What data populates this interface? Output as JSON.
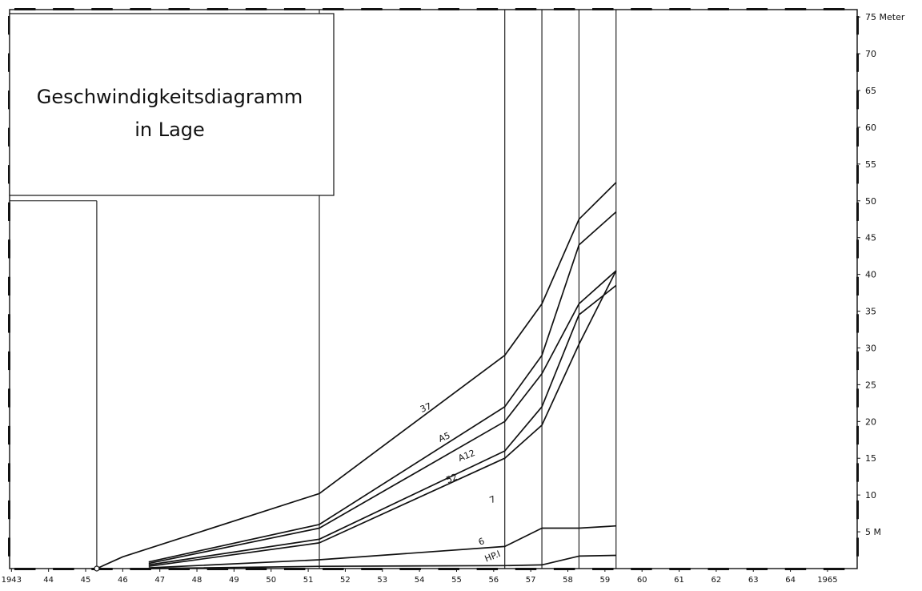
{
  "chart_data": {
    "type": "line",
    "title_lines": [
      "Geschwindigkeitsdiagramm",
      "in Lage"
    ],
    "xlabel": "",
    "ylabel": "",
    "x_ticks": [
      {
        "x": 1943,
        "label": "1943"
      },
      {
        "x": 1944,
        "label": "44"
      },
      {
        "x": 1945,
        "label": "45"
      },
      {
        "x": 1946,
        "label": "46"
      },
      {
        "x": 1947,
        "label": "47"
      },
      {
        "x": 1948,
        "label": "48"
      },
      {
        "x": 1949,
        "label": "49"
      },
      {
        "x": 1950,
        "label": "50"
      },
      {
        "x": 1951,
        "label": "51"
      },
      {
        "x": 1952,
        "label": "52"
      },
      {
        "x": 1953,
        "label": "53"
      },
      {
        "x": 1954,
        "label": "54"
      },
      {
        "x": 1955,
        "label": "55"
      },
      {
        "x": 1956,
        "label": "56"
      },
      {
        "x": 1957,
        "label": "57"
      },
      {
        "x": 1958,
        "label": "58"
      },
      {
        "x": 1959,
        "label": "59"
      },
      {
        "x": 1960,
        "label": "60"
      },
      {
        "x": 1961,
        "label": "61"
      },
      {
        "x": 1962,
        "label": "62"
      },
      {
        "x": 1963,
        "label": "63"
      },
      {
        "x": 1964,
        "label": "64"
      },
      {
        "x": 1965,
        "label": "1965"
      }
    ],
    "y_ticks": [
      {
        "y": 5,
        "label": "5 M"
      },
      {
        "y": 10,
        "label": "10"
      },
      {
        "y": 15,
        "label": "15"
      },
      {
        "y": 20,
        "label": "20"
      },
      {
        "y": 25,
        "label": "25"
      },
      {
        "y": 30,
        "label": "30"
      },
      {
        "y": 35,
        "label": "35"
      },
      {
        "y": 40,
        "label": "40"
      },
      {
        "y": 45,
        "label": "45"
      },
      {
        "y": 50,
        "label": "50"
      },
      {
        "y": 55,
        "label": "55"
      },
      {
        "y": 60,
        "label": "60"
      },
      {
        "y": 65,
        "label": "65"
      },
      {
        "y": 70,
        "label": "70"
      },
      {
        "y": 75,
        "label": "75 Meter"
      }
    ],
    "xlim": [
      1942.95,
      1965.8
    ],
    "ylim": [
      0,
      76
    ],
    "vertical_lines": [
      1945.3,
      1951.3,
      1956.3,
      1957.3,
      1958.3,
      1959.3
    ],
    "series": [
      {
        "name": "37",
        "points": [
          [
            1945.3,
            0
          ],
          [
            1946.0,
            1.6
          ],
          [
            1951.3,
            10.2
          ],
          [
            1956.3,
            29.0
          ],
          [
            1957.3,
            36.0
          ],
          [
            1958.3,
            47.5
          ],
          [
            1959.3,
            52.5
          ]
        ]
      },
      {
        "name": "A5",
        "points": [
          [
            1946.7,
            0.9
          ],
          [
            1951.3,
            6.0
          ],
          [
            1956.3,
            22.0
          ],
          [
            1957.3,
            29.0
          ],
          [
            1958.3,
            44.0
          ],
          [
            1959.3,
            48.5
          ]
        ]
      },
      {
        "name": "A12",
        "points": [
          [
            1946.7,
            0.7
          ],
          [
            1951.3,
            5.5
          ],
          [
            1956.3,
            20.0
          ],
          [
            1957.3,
            26.5
          ],
          [
            1958.3,
            36.0
          ],
          [
            1959.3,
            40.5
          ]
        ]
      },
      {
        "name": "52",
        "points": [
          [
            1946.7,
            0.5
          ],
          [
            1951.3,
            4.0
          ],
          [
            1956.3,
            16.0
          ],
          [
            1957.3,
            22.0
          ],
          [
            1958.3,
            34.5
          ],
          [
            1959.3,
            38.5
          ]
        ]
      },
      {
        "name": "7",
        "points": [
          [
            1946.7,
            0.3
          ],
          [
            1951.3,
            3.5
          ],
          [
            1956.3,
            15.0
          ],
          [
            1957.3,
            19.5
          ],
          [
            1958.3,
            30.5
          ],
          [
            1959.3,
            40.5
          ]
        ]
      },
      {
        "name": "6",
        "points": [
          [
            1946.7,
            0.1
          ],
          [
            1951.3,
            1.2
          ],
          [
            1956.3,
            3.0
          ],
          [
            1957.3,
            5.5
          ],
          [
            1958.3,
            5.5
          ],
          [
            1959.3,
            5.8
          ]
        ]
      },
      {
        "name": "HP.I",
        "points": [
          [
            1946.7,
            0.0
          ],
          [
            1951.3,
            0.3
          ],
          [
            1956.3,
            0.4
          ],
          [
            1957.3,
            0.5
          ],
          [
            1958.3,
            1.7
          ],
          [
            1959.3,
            1.8
          ]
        ]
      }
    ],
    "series_labels": [
      {
        "name": "37",
        "x": 1954.2,
        "y": 21.5
      },
      {
        "name": "A5",
        "x": 1954.7,
        "y": 17.5
      },
      {
        "name": "A12",
        "x": 1955.3,
        "y": 15.0
      },
      {
        "name": "52",
        "x": 1954.9,
        "y": 11.9
      },
      {
        "name": "7",
        "x": 1956.0,
        "y": 9.0
      },
      {
        "name": "6",
        "x": 1955.7,
        "y": 3.3
      },
      {
        "name": "HP.I",
        "x": 1956.0,
        "y": 1.3
      }
    ]
  }
}
